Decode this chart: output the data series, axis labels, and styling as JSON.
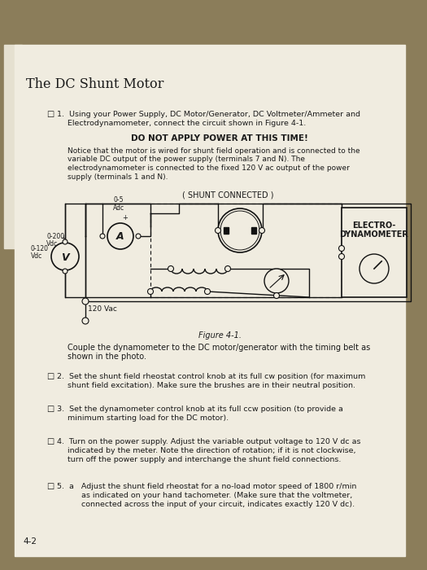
{
  "title": "The DC Shunt Motor",
  "paper_color": "#f0ece0",
  "carpet_color": "#8b7d5a",
  "text_color": "#1a1a1a",
  "line_color": "#111111",
  "checkbox": "□",
  "step1_line1": "1.  Using your Power Supply, DC Motor/Generator, DC Voltmeter/Ammeter and",
  "step1_line2": "Electrodynamometer, connect the circuit shown in Figure 4-1.",
  "warning": "DO NOT APPLY POWER AT THIS TIME!",
  "notice_lines": [
    "Notice that the motor is wired for shunt field operation and is connected to the",
    "variable DC output of the power supply (terminals 7 and N). The",
    "electrodynamometer is connected to the fixed 120 V ac output of the power",
    "supply (terminals 1 and N)."
  ],
  "shunt_label": "( SHUNT CONNECTED )",
  "ammeter_range": "0-5\nAdc",
  "voltmeter_range": "0-120\nVdc",
  "voltmeter2_range": "0-200\nVdc",
  "electro_label1": "ELECTRO-",
  "electro_label2": "DYNAMOMETER",
  "vac_label": "120 Vac",
  "fig_label": "Figure 4-1.",
  "fig_caption_1": "Couple the dynamometer to the DC motor/generator with the timing belt as",
  "fig_caption_2": "shown in the photo.",
  "step2_lines": [
    "2.  Set the shunt field rheostat control knob at its full cw position (for maximum",
    "shunt field excitation). Make sure the brushes are in their neutral position."
  ],
  "step3_lines": [
    "3.  Set the dynamometer control knob at its full ccw position (to provide a",
    "minimum starting load for the DC motor)."
  ],
  "step4_lines": [
    "4.  Turn on the power supply. Adjust the variable output voltage to 120 V dc as",
    "indicated by the meter. Note the direction of rotation; if it is not clockwise,",
    "turn off the power supply and interchange the shunt field connections."
  ],
  "step5_lines": [
    "5.  a   Adjust the shunt field rheostat for a no-load motor speed of 1800 r/min",
    "as indicated on your hand tachometer. (Make sure that the voltmeter,",
    "connected across the input of your circuit, indicates exactly 120 V dc)."
  ],
  "page_num": "4-2"
}
